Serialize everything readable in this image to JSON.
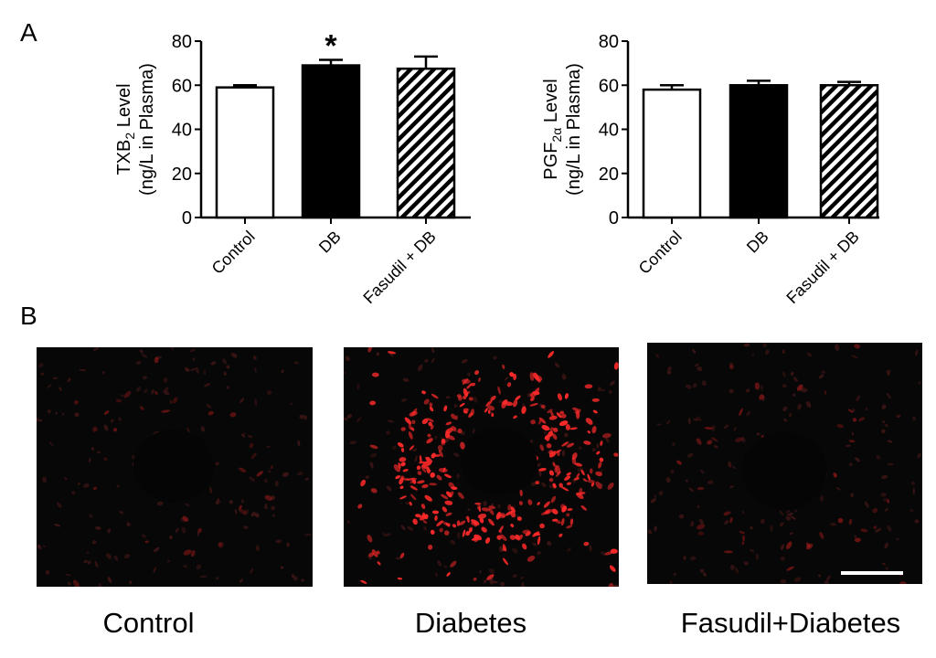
{
  "panel_labels": {
    "a": "A",
    "b": "B"
  },
  "chart_data": [
    {
      "type": "bar",
      "title": "",
      "ylabel_line1_pre": "TXB",
      "ylabel_line1_sub": "2",
      "ylabel_line1_post": " Level",
      "ylabel_line2": "(ng/L in Plasma)",
      "xlabel": "",
      "categories": [
        "Control",
        "DB",
        "Fasudil + DB"
      ],
      "values": [
        59,
        69,
        67.5
      ],
      "errors": [
        1,
        2.5,
        5.5
      ],
      "fills": [
        "white",
        "black",
        "hatch"
      ],
      "annotations": [
        "",
        "*",
        ""
      ],
      "ylim": [
        0,
        80
      ],
      "yticks": [
        0,
        20,
        40,
        60,
        80
      ],
      "grid": false
    },
    {
      "type": "bar",
      "title": "",
      "ylabel_line1_pre": "PGF",
      "ylabel_line1_sub": "2α",
      "ylabel_line1_post": " Level",
      "ylabel_line2": "(ng/L in Plasma)",
      "xlabel": "",
      "categories": [
        "Control",
        "DB",
        "Fasudil + DB"
      ],
      "values": [
        58,
        60,
        60
      ],
      "errors": [
        2,
        2,
        1.5
      ],
      "fills": [
        "white",
        "black",
        "hatch"
      ],
      "annotations": [
        "",
        "",
        ""
      ],
      "ylim": [
        0,
        80
      ],
      "yticks": [
        0,
        20,
        40,
        60,
        80
      ],
      "grid": false
    }
  ],
  "micrographs": [
    {
      "caption": "Control",
      "stain_color": "#d42020",
      "intensity": "low"
    },
    {
      "caption": "Diabetes",
      "stain_color": "#ff2a2a",
      "intensity": "high"
    },
    {
      "caption": "Fasudil+Diabetes",
      "stain_color": "#d42020",
      "intensity": "low"
    }
  ]
}
